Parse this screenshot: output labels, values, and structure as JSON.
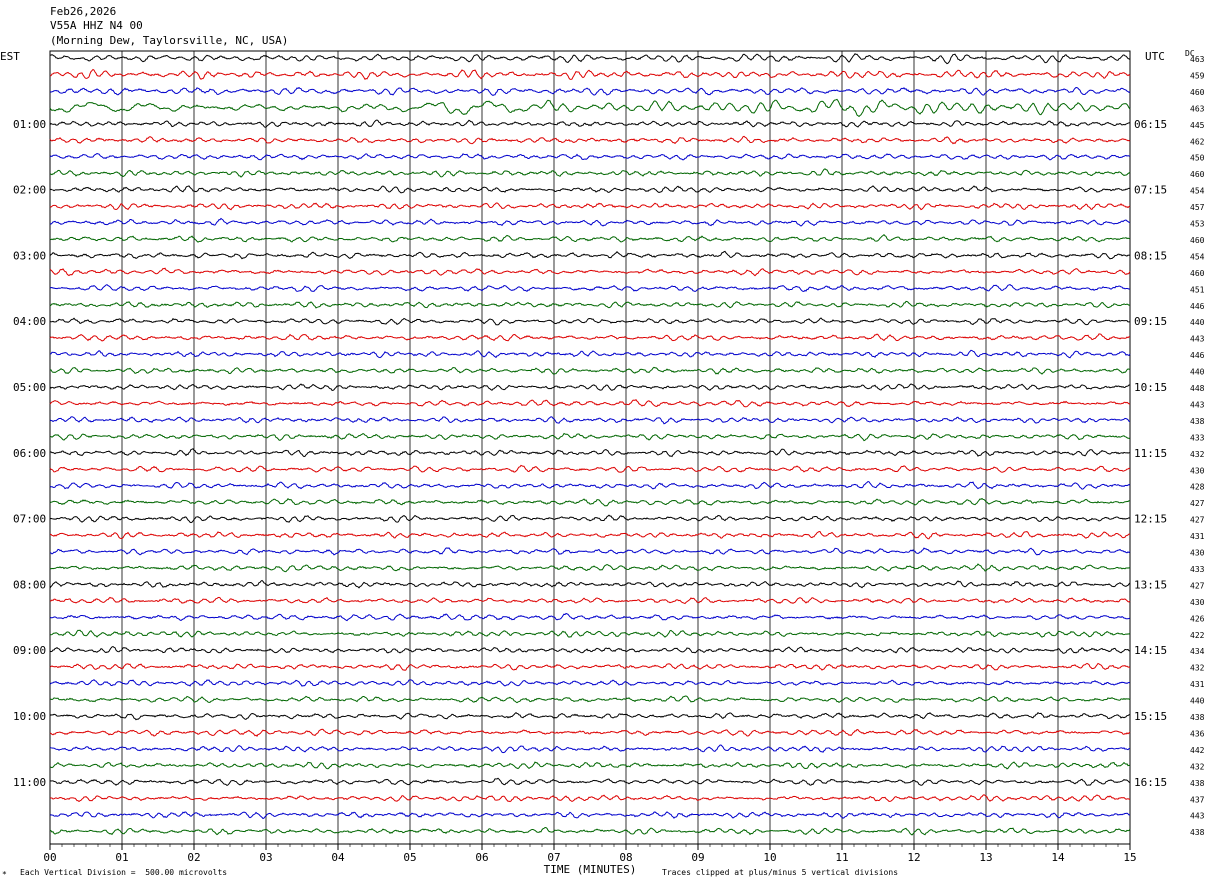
{
  "header": {
    "date": "Feb26,2026",
    "channel": "V55A HHZ N4 00",
    "location": "(Morning Dew, Taylorsville, NC, USA)"
  },
  "left_zone_label": "EST",
  "right_zone_label": "UTC",
  "dc_label": "DC",
  "footer": {
    "scale_note": "Each Vertical Division =  500.00 microvolts",
    "clip_note": "Traces clipped at plus/minus 5 vertical divisions"
  },
  "colors": {
    "trace_cycle": [
      "#000000",
      "#dd0000",
      "#0000cc",
      "#006600"
    ],
    "grid": "#000000"
  },
  "chart_data": {
    "type": "line",
    "title": "",
    "xlabel": "TIME (MINUTES)",
    "xlim": [
      0,
      15
    ],
    "x_ticks": [
      "00",
      "01",
      "02",
      "03",
      "04",
      "05",
      "06",
      "07",
      "08",
      "09",
      "10",
      "11",
      "12",
      "13",
      "14",
      "15"
    ],
    "left_hour_labels": [
      "01:00",
      "02:00",
      "03:00",
      "04:00",
      "05:00",
      "06:00",
      "07:00",
      "08:00",
      "09:00",
      "10:00",
      "11:00"
    ],
    "right_hour_labels": [
      "06:15",
      "07:15",
      "08:15",
      "09:15",
      "10:15",
      "11:15",
      "12:15",
      "13:15",
      "14:15",
      "15:15",
      "16:15"
    ],
    "trace_count": 48,
    "hour_label_every_traces": 4,
    "first_labeled_trace_index": 4,
    "dc_offsets": [
      463,
      459,
      460,
      463,
      445,
      462,
      450,
      460,
      454,
      457,
      453,
      460,
      454,
      460,
      451,
      446,
      440,
      443,
      446,
      440,
      448,
      443,
      438,
      433,
      432,
      430,
      428,
      427,
      427,
      431,
      430,
      433,
      427,
      430,
      426,
      422,
      434,
      432,
      431,
      440,
      438,
      436,
      442,
      432,
      438,
      437,
      443,
      438
    ]
  }
}
